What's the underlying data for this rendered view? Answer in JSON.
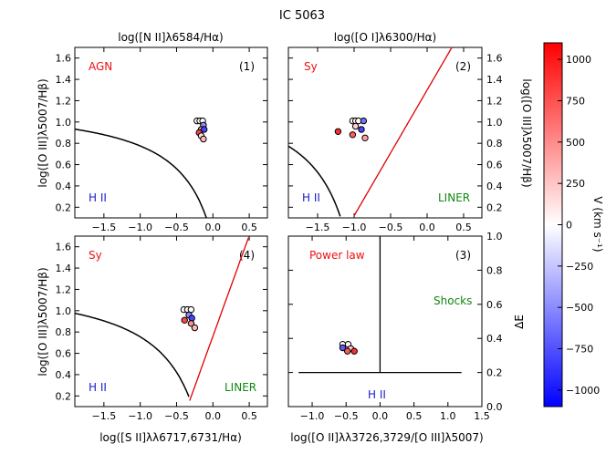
{
  "title": "IC 5063",
  "colorbar": {
    "label": "V (km s⁻¹)",
    "range": [
      -1100,
      1100
    ],
    "ticks": [
      "1000",
      "750",
      "500",
      "250",
      "0",
      "−250",
      "−500",
      "−750",
      "−1000"
    ],
    "tick_values": [
      1000,
      750,
      500,
      250,
      0,
      -250,
      -500,
      -750,
      -1000
    ],
    "colors": {
      "low": "#0000ff",
      "mid": "#ffffff",
      "high": "#ff0000"
    }
  },
  "colors": {
    "hii": "#1a1acc",
    "agn": "#ee1111",
    "liner": "#118811",
    "sep": "#000000",
    "line": "#e00000"
  },
  "chart_data": [
    {
      "type": "scatter",
      "panel_label": "(1)",
      "top_xlabel": "log([N II]λ6584/Hα)",
      "ylabel": "log([O III]λ5007/Hβ)",
      "xlim": [
        -1.9,
        0.75
      ],
      "ylim": [
        0.1,
        1.7
      ],
      "xticks": [
        "−1.5",
        "−1.0",
        "−0.5",
        "0.0",
        "0.5"
      ],
      "xtick_values": [
        -1.5,
        -1.0,
        -0.5,
        0.0,
        0.5
      ],
      "yticks": [
        "0.2",
        "0.4",
        "0.6",
        "0.8",
        "1.0",
        "1.2",
        "1.4",
        "1.6"
      ],
      "ytick_values": [
        0.2,
        0.4,
        0.6,
        0.8,
        1.0,
        1.2,
        1.4,
        1.6
      ],
      "region_labels": {
        "agn": "AGN",
        "hii": "H II"
      },
      "points": [
        {
          "x": -0.22,
          "y": 1.01,
          "v": 0
        },
        {
          "x": -0.18,
          "y": 1.01,
          "v": 50
        },
        {
          "x": -0.14,
          "y": 1.01,
          "v": 0
        },
        {
          "x": -0.13,
          "y": 0.97,
          "v": -500
        },
        {
          "x": -0.16,
          "y": 0.93,
          "v": 500
        },
        {
          "x": -0.12,
          "y": 0.93,
          "v": -800
        },
        {
          "x": -0.19,
          "y": 0.9,
          "v": 800
        },
        {
          "x": -0.16,
          "y": 0.87,
          "v": 150
        },
        {
          "x": -0.13,
          "y": 0.84,
          "v": 300
        }
      ]
    },
    {
      "type": "scatter",
      "panel_label": "(2)",
      "top_xlabel": "log([O I]λ6300/Hα)",
      "ylabel": "log([O III]λ5007/Hβ)",
      "xlim": [
        -1.9,
        0.75
      ],
      "ylim": [
        0.1,
        1.7
      ],
      "xticks": [
        "−1.5",
        "−1.0",
        "−0.5",
        "0.0",
        "0.5"
      ],
      "xtick_values": [
        -1.5,
        -1.0,
        -0.5,
        0.0,
        0.5
      ],
      "yticks": [
        "0.2",
        "0.4",
        "0.6",
        "0.8",
        "1.0",
        "1.2",
        "1.4",
        "1.6"
      ],
      "ytick_values": [
        0.2,
        0.4,
        0.6,
        0.8,
        1.0,
        1.2,
        1.4,
        1.6
      ],
      "region_labels": {
        "sy": "Sy",
        "hii": "H II",
        "liner": "LINER"
      },
      "points": [
        {
          "x": -1.02,
          "y": 1.01,
          "v": 0
        },
        {
          "x": -0.98,
          "y": 1.01,
          "v": 50
        },
        {
          "x": -0.94,
          "y": 1.01,
          "v": 0
        },
        {
          "x": -0.87,
          "y": 1.01,
          "v": -600
        },
        {
          "x": -0.98,
          "y": 0.96,
          "v": 200
        },
        {
          "x": -0.9,
          "y": 0.93,
          "v": -800
        },
        {
          "x": -1.22,
          "y": 0.91,
          "v": 900
        },
        {
          "x": -1.02,
          "y": 0.88,
          "v": 700
        },
        {
          "x": -0.85,
          "y": 0.85,
          "v": 400
        }
      ]
    },
    {
      "type": "scatter",
      "panel_label": "(4)",
      "xlabel": "log([S II]λλ6717,6731/Hα)",
      "ylabel": "log([O III]λ5007/Hβ)",
      "xlim": [
        -1.9,
        0.75
      ],
      "ylim": [
        0.1,
        1.7
      ],
      "xticks": [
        "−1.5",
        "−1.0",
        "−0.5",
        "0.0",
        "0.5"
      ],
      "xtick_values": [
        -1.5,
        -1.0,
        -0.5,
        0.0,
        0.5
      ],
      "yticks": [
        "0.2",
        "0.4",
        "0.6",
        "0.8",
        "1.0",
        "1.2",
        "1.4",
        "1.6"
      ],
      "ytick_values": [
        0.2,
        0.4,
        0.6,
        0.8,
        1.0,
        1.2,
        1.4,
        1.6
      ],
      "region_labels": {
        "sy": "Sy",
        "hii": "H II",
        "liner": "LINER"
      },
      "points": [
        {
          "x": -0.4,
          "y": 1.01,
          "v": 0
        },
        {
          "x": -0.35,
          "y": 1.01,
          "v": 50
        },
        {
          "x": -0.3,
          "y": 1.01,
          "v": 0
        },
        {
          "x": -0.33,
          "y": 0.96,
          "v": -500
        },
        {
          "x": -0.29,
          "y": 0.93,
          "v": -800
        },
        {
          "x": -0.39,
          "y": 0.91,
          "v": 800
        },
        {
          "x": -0.3,
          "y": 0.88,
          "v": 500
        },
        {
          "x": -0.25,
          "y": 0.84,
          "v": 300
        }
      ]
    },
    {
      "type": "scatter",
      "panel_label": "(3)",
      "xlabel": "log([O II]λλ3726,3729/[O III]λ5007)",
      "ylabel": "ΔE",
      "xlim": [
        -1.35,
        1.5
      ],
      "ylim": [
        0.0,
        1.0
      ],
      "xticks": [
        "−1.0",
        "−0.5",
        "0.0",
        "0.5",
        "1.0",
        "1.5"
      ],
      "xtick_values": [
        -1.0,
        -0.5,
        0.0,
        0.5,
        1.0,
        1.5
      ],
      "yticks": [
        "0.0",
        "0.2",
        "0.4",
        "0.6",
        "0.8",
        "1.0"
      ],
      "ytick_values": [
        0.0,
        0.2,
        0.4,
        0.6,
        0.8,
        1.0
      ],
      "region_labels": {
        "power_law": "Power law",
        "shocks": "Shocks",
        "hii": "H II"
      },
      "points": [
        {
          "x": -0.55,
          "y": 0.365,
          "v": 0
        },
        {
          "x": -0.47,
          "y": 0.365,
          "v": 50
        },
        {
          "x": -0.55,
          "y": 0.345,
          "v": -700
        },
        {
          "x": -0.43,
          "y": 0.34,
          "v": 200
        },
        {
          "x": -0.48,
          "y": 0.325,
          "v": 700
        },
        {
          "x": -0.38,
          "y": 0.325,
          "v": 900
        }
      ]
    }
  ]
}
